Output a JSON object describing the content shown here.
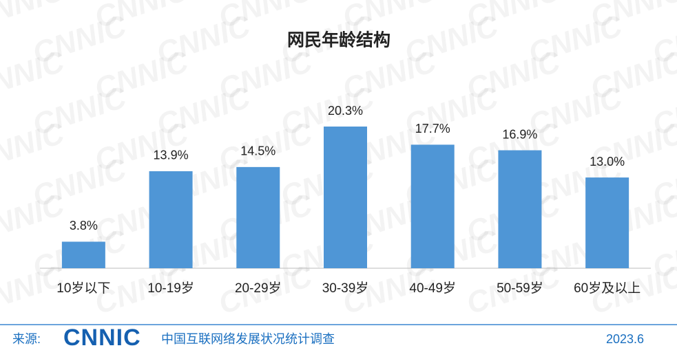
{
  "chart_data": {
    "type": "bar",
    "title": "网民年龄结构",
    "categories": [
      "10岁以下",
      "10-19岁",
      "20-29岁",
      "30-39岁",
      "40-49岁",
      "50-59岁",
      "60岁及以上"
    ],
    "values": [
      3.8,
      13.9,
      14.5,
      20.3,
      17.7,
      16.9,
      13.0
    ],
    "value_labels": [
      "3.8%",
      "13.9%",
      "14.5%",
      "20.3%",
      "17.7%",
      "16.9%",
      "13.0%"
    ],
    "color": "#4f96d6",
    "watermark": "CNNIC",
    "footer": {
      "source_label": "来源:",
      "logo": "CNNIC",
      "source": "中国互联网络发展状况统计调查",
      "date": "2023.6"
    }
  }
}
